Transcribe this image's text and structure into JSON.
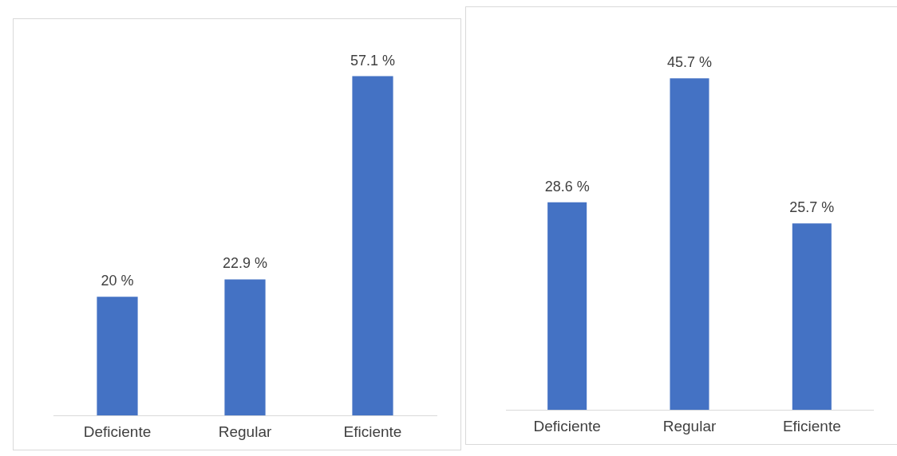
{
  "chart_data": [
    {
      "type": "bar",
      "categories": [
        "Deficiente",
        "Regular",
        "Eficiente"
      ],
      "values": [
        20,
        22.9,
        57.1
      ],
      "value_labels": [
        "20 %",
        "22.9 %",
        "57.1 %"
      ],
      "color": "#4472c4",
      "grid": false,
      "legend": false
    },
    {
      "type": "bar",
      "categories": [
        "Deficiente",
        "Regular",
        "Eficiente"
      ],
      "values": [
        28.6,
        45.7,
        25.7
      ],
      "value_labels": [
        "28.6 %",
        "45.7 %",
        "25.7 %"
      ],
      "color": "#4472c4",
      "grid": false,
      "legend": false
    }
  ]
}
